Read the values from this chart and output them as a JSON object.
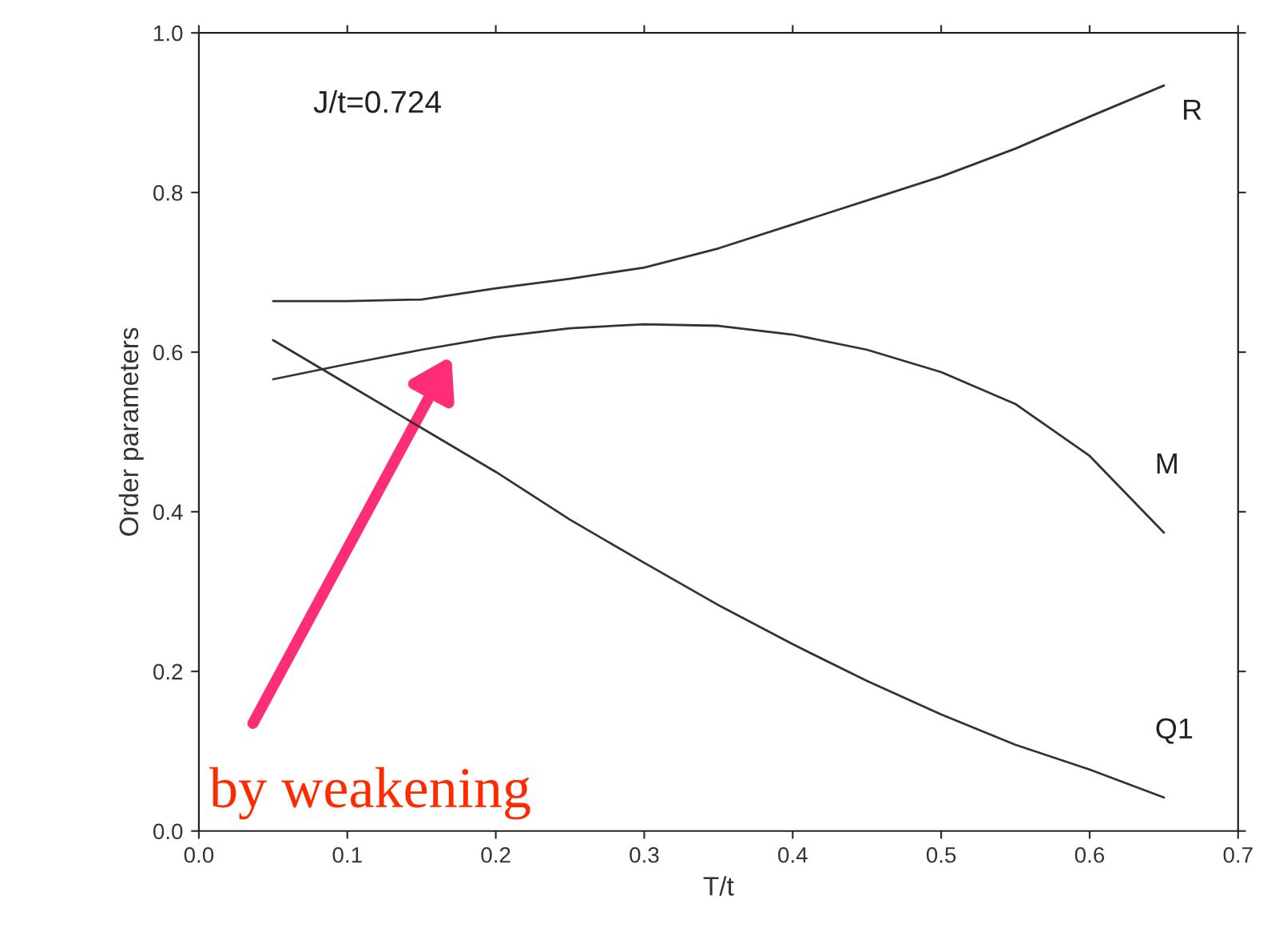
{
  "chart_data": {
    "type": "line",
    "xlabel": "T/t",
    "ylabel": "Order parameters",
    "annotations": [
      "J/t=0.724",
      "by weakening"
    ],
    "x": [
      0.05,
      0.1,
      0.15,
      0.2,
      0.25,
      0.3,
      0.35,
      0.4,
      0.45,
      0.5,
      0.55,
      0.6,
      0.65
    ],
    "series": [
      {
        "name": "R",
        "color": "#333333",
        "values": [
          0.664,
          0.664,
          0.666,
          0.68,
          0.692,
          0.706,
          0.73,
          0.76,
          0.79,
          0.82,
          0.855,
          0.895,
          0.934
        ]
      },
      {
        "name": "M",
        "color": "#333333",
        "values": [
          0.566,
          0.585,
          0.603,
          0.619,
          0.63,
          0.635,
          0.633,
          0.622,
          0.603,
          0.575,
          0.535,
          0.47,
          0.374
        ]
      },
      {
        "name": "Q1",
        "color": "#333333",
        "values": [
          0.615,
          0.56,
          0.505,
          0.45,
          0.39,
          0.336,
          0.283,
          0.234,
          0.188,
          0.146,
          0.108,
          0.077,
          0.042
        ]
      }
    ],
    "xlim": [
      0.0,
      0.7
    ],
    "xticks": [
      {
        "value": 0.0,
        "label": "0.0"
      },
      0.1,
      0.2,
      0.3,
      0.4,
      0.5,
      0.6,
      0.7
    ],
    "ylim": [
      0.0,
      1.0
    ],
    "yticks": [
      {
        "value": 0.0,
        "label": "0.0"
      },
      0.2,
      0.4,
      0.6,
      0.8,
      {
        "value": 1.0,
        "label": "1.0"
      }
    ],
    "grid": false,
    "legend": false,
    "marker": "none",
    "line_style": "solid"
  }
}
